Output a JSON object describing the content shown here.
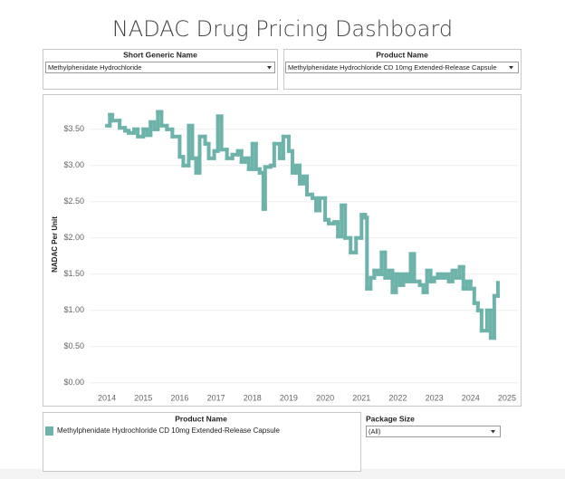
{
  "title": "NADAC Drug Pricing Dashboard",
  "filters": [
    {
      "label": "Short Generic Name",
      "value": "Methylphenidate Hydrochloride"
    },
    {
      "label": "Product Name",
      "value": "Methylphenidate Hydrochloride CD 10mg Extended-Release Capsule"
    }
  ],
  "chart_data": {
    "type": "line",
    "line_shape": "step",
    "ylabel": "NADAC Per Unit",
    "x": [
      2014.0,
      2014.08,
      2014.15,
      2014.35,
      2014.5,
      2014.6,
      2014.75,
      2014.85,
      2015.0,
      2015.1,
      2015.2,
      2015.3,
      2015.4,
      2015.5,
      2015.65,
      2015.8,
      2016.0,
      2016.1,
      2016.25,
      2016.35,
      2016.45,
      2016.55,
      2016.7,
      2016.8,
      2016.95,
      2017.05,
      2017.15,
      2017.3,
      2017.45,
      2017.6,
      2017.7,
      2017.8,
      2017.9,
      2018.0,
      2018.1,
      2018.2,
      2018.3,
      2018.35,
      2018.5,
      2018.6,
      2018.75,
      2018.85,
      2019.0,
      2019.1,
      2019.2,
      2019.3,
      2019.4,
      2019.5,
      2019.65,
      2019.75,
      2019.85,
      2020.0,
      2020.1,
      2020.25,
      2020.35,
      2020.45,
      2020.55,
      2020.7,
      2020.85,
      2021.0,
      2021.1,
      2021.15,
      2021.25,
      2021.35,
      2021.45,
      2021.55,
      2021.65,
      2021.75,
      2021.85,
      2021.95,
      2022.05,
      2022.15,
      2022.25,
      2022.35,
      2022.45,
      2022.6,
      2022.7,
      2022.8,
      2022.9,
      2023.0,
      2023.1,
      2023.2,
      2023.3,
      2023.4,
      2023.5,
      2023.6,
      2023.7,
      2023.8,
      2023.9,
      2024.0,
      2024.1,
      2024.2,
      2024.3,
      2024.45,
      2024.55,
      2024.65,
      2024.75
    ],
    "series": [
      {
        "name": "Methylphenidate Hydrochloride CD 10mg Extended-Release Capsule",
        "color": "#6db3aa",
        "values": [
          3.55,
          3.7,
          3.62,
          3.52,
          3.48,
          3.45,
          3.5,
          3.4,
          3.5,
          3.42,
          3.6,
          3.5,
          3.74,
          3.55,
          3.5,
          3.4,
          3.12,
          3.0,
          3.55,
          3.1,
          2.9,
          3.4,
          3.3,
          3.1,
          3.2,
          3.68,
          3.22,
          3.1,
          3.15,
          3.2,
          3.05,
          3.1,
          2.95,
          3.3,
          2.95,
          2.9,
          2.4,
          2.98,
          3.0,
          3.3,
          3.1,
          3.4,
          3.2,
          2.9,
          3.0,
          2.75,
          2.85,
          2.6,
          2.55,
          2.38,
          2.55,
          2.25,
          2.2,
          2.22,
          2.02,
          2.45,
          2.0,
          1.8,
          2.0,
          2.32,
          2.28,
          1.3,
          1.45,
          1.55,
          1.5,
          1.8,
          1.45,
          1.55,
          1.25,
          1.5,
          1.35,
          1.5,
          1.4,
          1.78,
          1.4,
          1.35,
          1.25,
          1.55,
          1.4,
          1.45,
          1.5,
          1.45,
          1.5,
          1.4,
          1.55,
          1.45,
          1.6,
          1.3,
          1.4,
          1.3,
          1.1,
          1.0,
          0.72,
          1.0,
          0.62,
          1.2,
          1.38
        ]
      }
    ],
    "xlim": [
      2013.55,
      2025.3
    ],
    "xticks": [
      2014,
      2015,
      2016,
      2017,
      2018,
      2019,
      2020,
      2021,
      2022,
      2023,
      2024,
      2025
    ],
    "ylim": [
      -0.09,
      3.91
    ],
    "yticks": [
      {
        "value": 0,
        "label": "$0.00"
      },
      {
        "value": 0.5,
        "label": "$0.50"
      },
      {
        "value": 1,
        "label": "$1.00"
      },
      {
        "value": 1.5,
        "label": "$1.50"
      },
      {
        "value": 2,
        "label": "$2.00"
      },
      {
        "value": 2.5,
        "label": "$2.50"
      },
      {
        "value": 3,
        "label": "$3.00"
      },
      {
        "value": 3.5,
        "label": "$3.50"
      }
    ],
    "grid": true
  },
  "legend": {
    "title": "Product Name"
  },
  "package_size": {
    "label": "Package Size",
    "value": "(All)"
  }
}
